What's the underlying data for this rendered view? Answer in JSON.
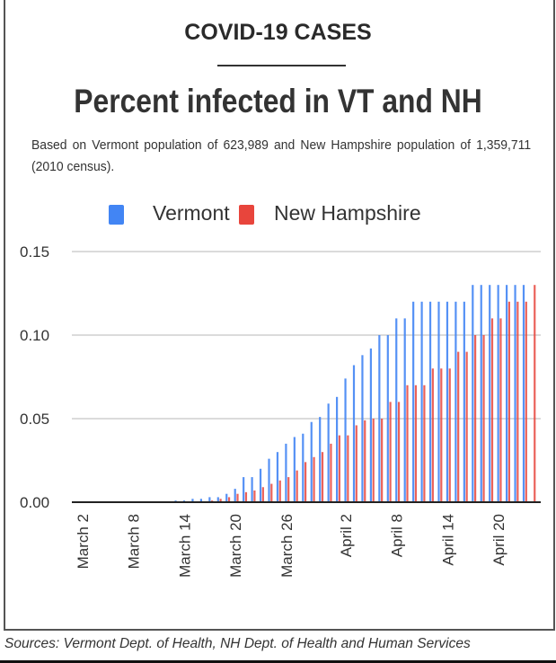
{
  "kicker": "COVID-19 CASES",
  "chart_data": {
    "type": "bar",
    "title": "Percent infected in VT and NH",
    "subtitle": "Based on Vermont population of 623,989 and New Hampshire population of 1,359,711 (2010 census).",
    "xlabel": "",
    "ylabel": "",
    "ylim": [
      0,
      0.15
    ],
    "yticks": [
      "0.00",
      "0.05",
      "0.10",
      "0.15"
    ],
    "ytick_values": [
      0,
      0.05,
      0.1,
      0.15
    ],
    "grid": true,
    "legend_position": "top",
    "x_start": "March 2",
    "x_end": "April 24",
    "xtick_labels": [
      {
        "label": "March 2",
        "index": 0
      },
      {
        "label": "March 8",
        "index": 6
      },
      {
        "label": "March 14",
        "index": 12
      },
      {
        "label": "March 20",
        "index": 18
      },
      {
        "label": "March 26",
        "index": 24
      },
      {
        "label": "April 2",
        "index": 31
      },
      {
        "label": "April 8",
        "index": 37
      },
      {
        "label": "April 14",
        "index": 43
      },
      {
        "label": "April 20",
        "index": 49
      }
    ],
    "series": [
      {
        "name": "Vermont",
        "color": "#4285f4",
        "values": [
          0,
          0,
          0,
          0,
          0,
          0,
          0,
          0,
          0,
          0,
          0,
          0.001,
          0.001,
          0.002,
          0.002,
          0.003,
          0.003,
          0.005,
          0.008,
          0.015,
          0.015,
          0.02,
          0.026,
          0.03,
          0.035,
          0.039,
          0.041,
          0.048,
          0.051,
          0.059,
          0.063,
          0.074,
          0.082,
          0.088,
          0.092,
          0.1,
          0.1,
          0.11,
          0.11,
          0.12,
          0.12,
          0.12,
          0.12,
          0.12,
          0.12,
          0.12,
          0.13,
          0.13,
          0.13,
          0.13,
          0.13,
          0.13,
          0.13,
          0
        ]
      },
      {
        "name": "New Hampshire",
        "color": "#e8453c",
        "values": [
          0,
          0,
          0,
          0,
          0,
          0,
          0,
          0,
          0,
          0,
          0,
          0,
          0,
          0,
          0,
          0.001,
          0.002,
          0.003,
          0.005,
          0.006,
          0.007,
          0.009,
          0.011,
          0.013,
          0.015,
          0.019,
          0.024,
          0.027,
          0.03,
          0.035,
          0.04,
          0.04,
          0.046,
          0.049,
          0.05,
          0.05,
          0.06,
          0.06,
          0.07,
          0.07,
          0.07,
          0.08,
          0.08,
          0.08,
          0.09,
          0.09,
          0.1,
          0.1,
          0.11,
          0.11,
          0.12,
          0.12,
          0.12,
          0.13
        ]
      }
    ]
  },
  "source": "Sources: Vermont Dept. of Health, NH Dept. of Health and Human Services"
}
